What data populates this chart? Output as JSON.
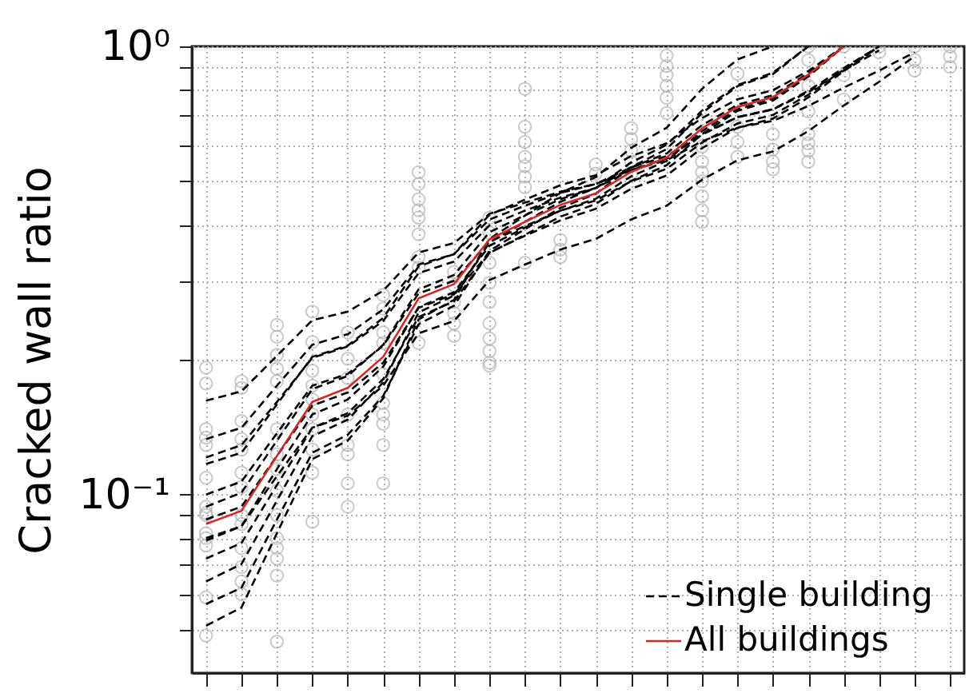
{
  "chart_data": {
    "type": "scatter",
    "ylabel": "Cracked wall ratio",
    "log": "y",
    "grid": true,
    "legend": "bottom right",
    "tick_labels": "y",
    "categories": [
      null,
      null,
      null,
      null,
      null,
      null,
      null,
      null,
      null,
      null,
      null,
      null,
      null,
      null,
      null,
      null,
      null,
      null,
      null,
      null,
      null,
      null
    ],
    "ylim": [
      0.04,
      1
    ],
    "yticks": [
      {
        "value": 0.05,
        "label": null
      },
      {
        "value": 0.06,
        "label": null
      },
      {
        "value": 0.07,
        "label": null
      },
      {
        "value": 0.08,
        "label": null
      },
      {
        "value": 0.09,
        "label": null
      },
      {
        "value": 0.1,
        "label": "10⁻¹"
      },
      {
        "value": 0.2,
        "label": null
      },
      {
        "value": 0.3,
        "label": null
      },
      {
        "value": 0.4,
        "label": null
      },
      {
        "value": 0.5,
        "label": null
      },
      {
        "value": 0.6,
        "label": null
      },
      {
        "value": 0.7,
        "label": null
      },
      {
        "value": 0.8,
        "label": null
      },
      {
        "value": 0.9,
        "label": null
      },
      {
        "value": 1,
        "label": "10⁰"
      }
    ],
    "series": [
      {
        "marker": "circle",
        "color": "#b4b4b4",
        "values": [
          0.192,
          0.179,
          0.239,
          0.256,
          0.23,
          0.279,
          0.524,
          0.314,
          0.415,
          0.804,
          0.37,
          0.545,
          0.657,
          0.954,
          0.598,
          0.869,
          0.637,
          1.0,
          1.0,
          1.0,
          1.0,
          1.0
        ]
      },
      {
        "marker": "circle",
        "color": "#b4b4b4",
        "values": [
          0.177,
          0.173,
          0.225,
          0.219,
          0.201,
          0.26,
          0.493,
          0.293,
          0.384,
          0.662,
          0.352,
          0.52,
          0.622,
          0.904,
          0.553,
          0.662,
          0.589,
          0.932,
          0.863,
          0.97,
          0.932,
          0.95
        ]
      },
      {
        "marker": "circle",
        "color": "#b4b4b4",
        "values": [
          0.14,
          0.146,
          0.205,
          0.189,
          0.182,
          0.23,
          0.456,
          0.269,
          0.329,
          0.612,
          0.339,
          null,
          0.585,
          0.863,
          0.524,
          0.612,
          0.553,
          0.817,
          0.761,
          null,
          0.883,
          0.9
        ]
      },
      {
        "marker": "circle",
        "color": "#b4b4b4",
        "values": [
          0.134,
          0.133,
          0.191,
          0.175,
          0.151,
          0.218,
          0.431,
          0.254,
          0.297,
          0.567,
          null,
          null,
          0.553,
          0.817,
          0.5,
          0.567,
          0.532,
          0.716,
          null,
          null,
          null,
          null
        ]
      },
      {
        "marker": "circle",
        "color": "#b4b4b4",
        "values": [
          0.129,
          0.126,
          0.179,
          0.163,
          0.129,
          0.186,
          0.415,
          0.241,
          0.269,
          0.541,
          null,
          null,
          0.52,
          0.768,
          0.463,
          null,
          null,
          0.637,
          null,
          null,
          null,
          null
        ]
      },
      {
        "marker": "circle",
        "color": "#b4b4b4",
        "values": [
          0.109,
          0.112,
          0.14,
          0.151,
          0.123,
          0.16,
          0.381,
          0.226,
          0.241,
          0.512,
          null,
          null,
          null,
          0.71,
          0.431,
          null,
          null,
          0.608,
          null,
          null,
          null,
          null
        ]
      },
      {
        "marker": "circle",
        "color": "#b4b4b4",
        "values": [
          0.094,
          0.104,
          0.123,
          0.14,
          0.106,
          0.151,
          0.339,
          null,
          0.223,
          0.485,
          null,
          null,
          null,
          null,
          0.406,
          null,
          null,
          0.585,
          null,
          null,
          null,
          null
        ]
      },
      {
        "marker": "circle",
        "color": "#b4b4b4",
        "values": [
          0.091,
          0.09,
          0.114,
          0.126,
          0.094,
          0.144,
          0.321,
          null,
          0.209,
          0.329,
          null,
          null,
          null,
          null,
          null,
          null,
          null,
          0.553,
          null,
          null,
          null,
          null
        ]
      },
      {
        "marker": "circle",
        "color": "#b4b4b4",
        "values": [
          0.09,
          0.086,
          0.102,
          0.112,
          null,
          0.129,
          0.218,
          null,
          0.197,
          null,
          null,
          null,
          null,
          null,
          null,
          null,
          null,
          null,
          null,
          null,
          null,
          null
        ]
      },
      {
        "marker": "circle",
        "color": "#b4b4b4",
        "values": [
          0.082,
          0.076,
          0.09,
          0.087,
          null,
          0.106,
          null,
          null,
          0.194,
          null,
          null,
          null,
          null,
          null,
          null,
          null,
          null,
          null,
          null,
          null,
          null,
          null
        ]
      },
      {
        "marker": "circle",
        "color": "#b4b4b4",
        "values": [
          0.08,
          0.069,
          0.08,
          null,
          null,
          null,
          null,
          null,
          null,
          null,
          null,
          null,
          null,
          null,
          null,
          null,
          null,
          null,
          null,
          null,
          null,
          null
        ]
      },
      {
        "marker": "circle",
        "color": "#b4b4b4",
        "values": [
          0.077,
          0.064,
          0.076,
          null,
          null,
          null,
          null,
          null,
          null,
          null,
          null,
          null,
          null,
          null,
          null,
          null,
          null,
          null,
          null,
          null,
          null,
          null
        ]
      },
      {
        "marker": "circle",
        "color": "#b4b4b4",
        "values": [
          0.059,
          0.06,
          0.072,
          null,
          null,
          null,
          null,
          null,
          null,
          null,
          null,
          null,
          null,
          null,
          null,
          null,
          null,
          null,
          null,
          null,
          null,
          null
        ]
      },
      {
        "marker": "circle",
        "color": "#b4b4b4",
        "values": [
          0.0485,
          null,
          0.066,
          null,
          null,
          null,
          null,
          null,
          null,
          null,
          null,
          null,
          null,
          null,
          null,
          null,
          null,
          null,
          null,
          null,
          null,
          null
        ]
      },
      {
        "marker": "circle",
        "color": "#b4b4b4",
        "values": [
          null,
          null,
          0.047,
          null,
          null,
          null,
          null,
          null,
          null,
          null,
          null,
          null,
          null,
          null,
          null,
          null,
          null,
          null,
          null,
          null,
          null,
          null
        ]
      },
      {
        "type": "line",
        "name": "Single building",
        "color": "#000000",
        "line_style": "dashed",
        "values": [
          0.162,
          0.17,
          0.204,
          0.245,
          0.256,
          0.285,
          0.347,
          0.364,
          0.423,
          0.448,
          0.474,
          0.493,
          0.53,
          0.557,
          0.614,
          0.659,
          0.682,
          0.736,
          0.809,
          0.883,
          0.97,
          null
        ]
      },
      {
        "type": "line",
        "color": "#000000",
        "line_style": "dashed",
        "values": [
          0.133,
          0.141,
          0.175,
          0.216,
          0.228,
          0.259,
          0.326,
          0.344,
          0.411,
          0.441,
          0.471,
          0.493,
          0.537,
          0.569,
          0.638,
          0.695,
          0.723,
          0.791,
          0.883,
          0.98,
          null,
          null
        ]
      },
      {
        "type": "line",
        "color": "#000000",
        "line_style": "dashed",
        "values": [
          0.121,
          0.129,
          0.161,
          0.202,
          0.214,
          0.244,
          0.312,
          0.331,
          0.399,
          0.43,
          0.46,
          0.483,
          0.53,
          0.562,
          0.635,
          0.695,
          0.724,
          0.796,
          0.895,
          1.0,
          null,
          null
        ]
      },
      {
        "type": "line",
        "color": "#000000",
        "line_style": "dashed",
        "values": [
          0.117,
          0.124,
          0.159,
          0.203,
          0.215,
          0.248,
          0.323,
          0.344,
          0.421,
          0.455,
          0.49,
          0.516,
          0.569,
          0.608,
          0.692,
          0.762,
          0.798,
          0.881,
          1.0,
          null,
          null,
          null
        ]
      },
      {
        "type": "line",
        "color": "#000000",
        "line_style": "dashed",
        "values": [
          0.1,
          0.107,
          0.137,
          0.175,
          0.186,
          0.215,
          0.281,
          0.3,
          0.367,
          0.397,
          0.43,
          0.453,
          0.5,
          0.533,
          0.61,
          0.673,
          0.703,
          0.78,
          0.887,
          1.0,
          null,
          null
        ]
      },
      {
        "type": "line",
        "color": "#000000",
        "line_style": "dashed",
        "values": [
          0.094,
          0.101,
          0.132,
          0.172,
          0.184,
          0.216,
          0.287,
          0.309,
          0.385,
          0.42,
          0.456,
          0.483,
          0.537,
          0.577,
          0.667,
          0.741,
          0.778,
          0.871,
          1.0,
          null,
          null,
          null
        ]
      },
      {
        "type": "line",
        "color": "#000000",
        "line_style": "dashed",
        "values": [
          0.088,
          0.094,
          0.122,
          0.158,
          0.169,
          0.197,
          0.261,
          0.28,
          0.347,
          0.378,
          0.409,
          0.434,
          0.481,
          0.515,
          0.593,
          0.658,
          0.69,
          0.769,
          0.881,
          1.0,
          null,
          null
        ]
      },
      {
        "type": "line",
        "color": "#000000",
        "line_style": "dashed",
        "values": [
          0.08,
          0.085,
          0.11,
          0.141,
          0.15,
          0.175,
          0.229,
          0.244,
          0.301,
          0.326,
          0.352,
          0.372,
          0.411,
          0.441,
          0.504,
          0.557,
          0.583,
          0.647,
          0.738,
          0.834,
          0.95,
          null
        ]
      },
      {
        "type": "line",
        "color": "#000000",
        "line_style": "dashed",
        "values": [
          0.079,
          0.085,
          0.114,
          0.151,
          0.163,
          0.193,
          0.262,
          0.283,
          0.359,
          0.394,
          0.43,
          0.457,
          0.513,
          0.555,
          0.647,
          0.724,
          0.764,
          0.861,
          1.0,
          null,
          null,
          null
        ]
      },
      {
        "type": "line",
        "color": "#000000",
        "line_style": "dashed",
        "values": [
          0.072,
          0.078,
          0.105,
          0.141,
          0.152,
          0.181,
          0.249,
          0.27,
          0.346,
          0.38,
          0.417,
          0.445,
          0.501,
          0.543,
          0.637,
          0.718,
          0.757,
          0.857,
          1.0,
          null,
          null,
          null
        ]
      },
      {
        "type": "line",
        "color": "#000000",
        "line_style": "dashed",
        "values": [
          0.064,
          0.07,
          0.097,
          0.135,
          0.147,
          0.178,
          0.255,
          0.278,
          0.365,
          0.406,
          0.45,
          0.483,
          0.551,
          0.603,
          0.719,
          0.82,
          0.873,
          1.0,
          null,
          null,
          null,
          null
        ]
      },
      {
        "type": "line",
        "color": "#000000",
        "line_style": "dashed",
        "values": [
          0.057,
          0.062,
          0.088,
          0.124,
          0.136,
          0.166,
          0.24,
          0.264,
          0.35,
          0.391,
          0.436,
          0.469,
          0.538,
          0.59,
          0.71,
          0.815,
          0.867,
          1.0,
          null,
          null,
          null,
          null
        ]
      },
      {
        "type": "line",
        "color": "#000000",
        "line_style": "dashed",
        "values": [
          0.051,
          0.056,
          0.082,
          0.12,
          0.132,
          0.164,
          0.246,
          0.272,
          0.372,
          0.419,
          0.471,
          0.511,
          0.594,
          0.658,
          0.804,
          0.935,
          1.0,
          null,
          null,
          null,
          null,
          null
        ]
      },
      {
        "type": "line",
        "name": "All buildings",
        "color": "#d62728",
        "line_style": "solid",
        "values": [
          0.086,
          0.092,
          0.122,
          0.161,
          0.173,
          0.203,
          0.274,
          0.295,
          0.371,
          0.406,
          0.443,
          0.47,
          0.525,
          0.565,
          0.656,
          0.733,
          0.77,
          0.865,
          1.0,
          null,
          null,
          null
        ]
      }
    ]
  }
}
